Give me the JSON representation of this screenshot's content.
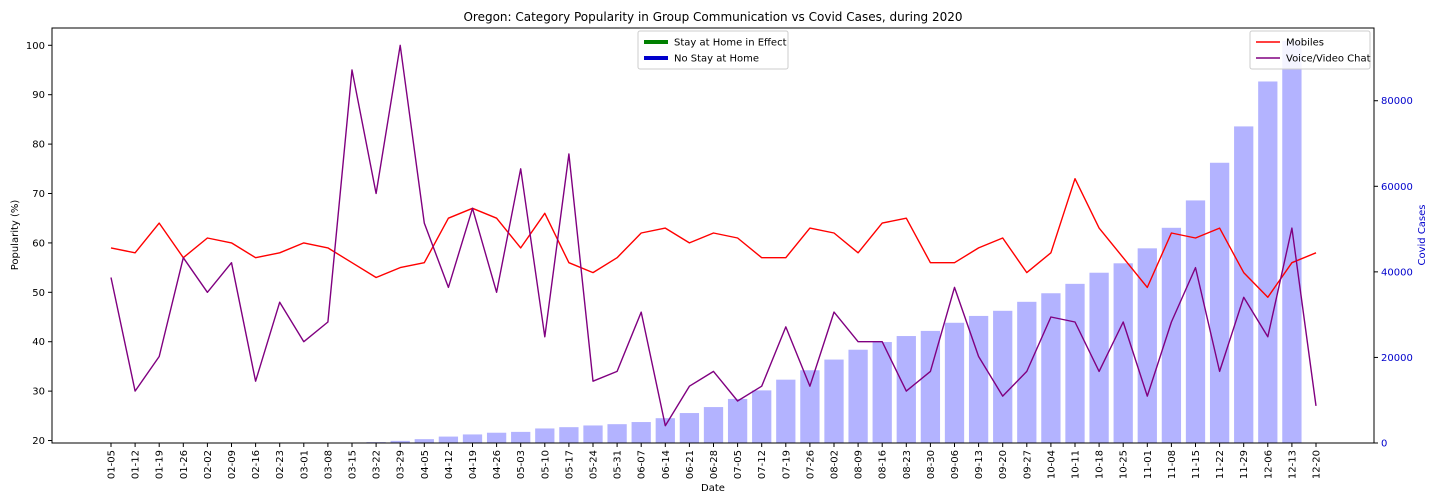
{
  "chart_data": {
    "type": "line",
    "title": "Oregon: Category Popularity in Group Communication vs Covid Cases, during 2020",
    "xlabel": "Date",
    "ylabel": "Popularity (%)",
    "y2label": "Covid Cases",
    "ylim": [
      19.5,
      103.5
    ],
    "y2lim": [
      0,
      97000
    ],
    "yticks": [
      20,
      30,
      40,
      50,
      60,
      70,
      80,
      90,
      100
    ],
    "y2ticks": [
      0,
      20000,
      40000,
      60000,
      80000
    ],
    "categories": [
      "01-05",
      "01-12",
      "01-19",
      "01-26",
      "02-02",
      "02-09",
      "02-16",
      "02-23",
      "03-01",
      "03-08",
      "03-15",
      "03-22",
      "03-29",
      "04-05",
      "04-12",
      "04-19",
      "04-26",
      "05-03",
      "05-10",
      "05-17",
      "05-24",
      "05-31",
      "06-07",
      "06-14",
      "06-21",
      "06-28",
      "07-05",
      "07-12",
      "07-19",
      "07-26",
      "08-02",
      "08-09",
      "08-16",
      "08-23",
      "08-30",
      "09-06",
      "09-13",
      "09-20",
      "09-27",
      "10-04",
      "10-11",
      "10-18",
      "10-25",
      "11-01",
      "11-08",
      "11-15",
      "11-22",
      "11-29",
      "12-06",
      "12-13",
      "12-20"
    ],
    "series": [
      {
        "name": "Mobiles",
        "color": "#ff0000",
        "values": [
          59,
          58,
          64,
          57,
          61,
          60,
          57,
          58,
          60,
          59,
          56,
          53,
          55,
          56,
          65,
          67,
          65,
          59,
          66,
          56,
          54,
          57,
          62,
          63,
          60,
          62,
          61,
          57,
          57,
          63,
          62,
          58,
          64,
          65,
          56,
          56,
          59,
          61,
          54,
          58,
          73,
          63,
          57,
          51,
          62,
          61,
          63,
          54,
          49,
          56,
          58
        ]
      },
      {
        "name": "Voice/Video Chat",
        "color": "#800080",
        "values": [
          53,
          30,
          37,
          57,
          50,
          56,
          32,
          48,
          40,
          44,
          95,
          70,
          100,
          64,
          51,
          67,
          50,
          75,
          41,
          78,
          32,
          34,
          46,
          23,
          31,
          34,
          28,
          31,
          43,
          31,
          46,
          40,
          40,
          30,
          34,
          51,
          37,
          29,
          34,
          45,
          44,
          34,
          44,
          29,
          44,
          55,
          34,
          49,
          41,
          63,
          27
        ]
      }
    ],
    "bars": {
      "name": "Covid Cases",
      "color": "#b3b3ff",
      "values": [
        0,
        0,
        0,
        0,
        0,
        0,
        0,
        0,
        0,
        0,
        0,
        200,
        500,
        900,
        1500,
        2000,
        2400,
        2600,
        3400,
        3700,
        4100,
        4400,
        4900,
        5800,
        7000,
        8400,
        10300,
        12300,
        14800,
        17000,
        19500,
        21800,
        23600,
        25000,
        26200,
        28100,
        29700,
        30900,
        33000,
        35000,
        37200,
        39800,
        42000,
        45500,
        50300,
        56700,
        65500,
        74000,
        84500,
        94000,
        0
      ]
    },
    "legend_left": {
      "placement": "top-center",
      "entries": [
        {
          "label": "Stay at Home in Effect",
          "color": "#008000"
        },
        {
          "label": "No Stay at Home",
          "color": "#0000cc"
        }
      ]
    },
    "legend_right": {
      "placement": "top-right",
      "entries": [
        {
          "label": "Mobiles",
          "color": "#ff0000"
        },
        {
          "label": "Voice/Video Chat",
          "color": "#800080"
        }
      ]
    },
    "y2_axis_color": "#0000cc",
    "grid": false
  }
}
